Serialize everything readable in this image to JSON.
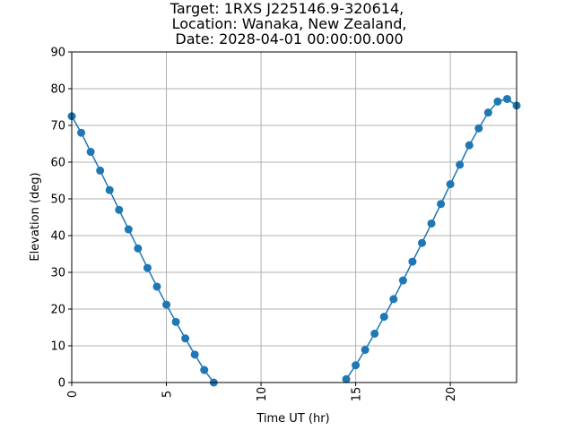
{
  "chart_data": {
    "type": "line",
    "title_lines": [
      "Target: 1RXS J225146.9-320614,",
      " Location: Wanaka, New Zealand,",
      " Date: 2028-04-01 00:00:00.000"
    ],
    "xlabel": "Time UT (hr)",
    "ylabel": "Elevation (deg)",
    "xlim": [
      0,
      23.5
    ],
    "ylim": [
      0,
      90
    ],
    "xticks": [
      0,
      5,
      10,
      15,
      20
    ],
    "yticks": [
      0,
      10,
      20,
      30,
      40,
      50,
      60,
      70,
      80,
      90
    ],
    "grid": true,
    "color": "#1f77b4",
    "series": [
      {
        "x": [
          0,
          0.5,
          1.0,
          1.5,
          2.0,
          2.5,
          3.0,
          3.5,
          4.0,
          4.5,
          5.0,
          5.5,
          6.0,
          6.5,
          7.0,
          7.5
        ],
        "values": [
          72.5,
          68.0,
          62.8,
          57.7,
          52.4,
          47.0,
          41.7,
          36.5,
          31.2,
          26.1,
          21.2,
          16.5,
          12.0,
          7.6,
          3.4,
          0
        ]
      },
      {
        "x": [
          14.5,
          15.0,
          15.5,
          16.0,
          16.5,
          17.0,
          17.5,
          18.0,
          18.5,
          19.0,
          19.5,
          20.0,
          20.5,
          21.0,
          21.5,
          22.0,
          22.5,
          23.0,
          23.5
        ],
        "values": [
          0.9,
          4.7,
          8.9,
          13.3,
          17.9,
          22.7,
          27.8,
          32.9,
          38.0,
          43.3,
          48.6,
          54.0,
          59.3,
          64.6,
          69.2,
          73.5,
          76.5,
          77.2,
          75.4
        ]
      }
    ]
  }
}
